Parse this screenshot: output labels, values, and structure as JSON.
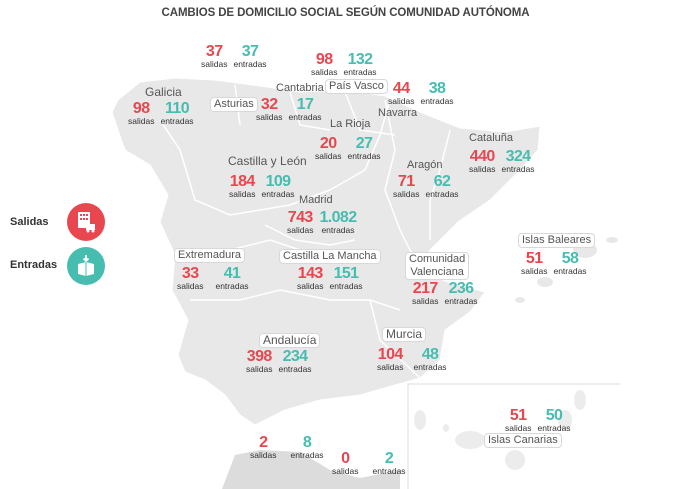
{
  "title": "CAMBIOS DE DOMICILIO SOCIAL SEGÚN COMUNIDAD AUTÓNOMA",
  "legend": {
    "salidas": {
      "label": "Salidas",
      "icon": "building-truck-icon",
      "color": "#e8474f"
    },
    "entradas": {
      "label": "Entradas",
      "icon": "box-arrow-icon",
      "color": "#47bdb0"
    }
  },
  "sub_salidas": "salidas",
  "sub_entradas": "entradas",
  "regions": {
    "asturias": {
      "name": "Asturias",
      "salidas": "37",
      "entradas": "37"
    },
    "pais_vasco": {
      "name": "País Vasco",
      "salidas": "98",
      "entradas": "132"
    },
    "cantabria": {
      "name": "Cantabria",
      "salidas": "32",
      "entradas": "17"
    },
    "navarra": {
      "name": "Navarra",
      "salidas": "44",
      "entradas": "38"
    },
    "galicia": {
      "name": "Galicia",
      "salidas": "98",
      "entradas": "110"
    },
    "la_rioja": {
      "name": "La Rioja",
      "salidas": "20",
      "entradas": "27"
    },
    "cataluna": {
      "name": "Cataluña",
      "salidas": "440",
      "entradas": "324"
    },
    "castilla_leon": {
      "name": "Castilla y León",
      "salidas": "184",
      "entradas": "109"
    },
    "aragon": {
      "name": "Aragón",
      "salidas": "71",
      "entradas": "62"
    },
    "madrid": {
      "name": "Madrid",
      "salidas": "743",
      "entradas": "1.082"
    },
    "baleares": {
      "name": "Islas Baleares",
      "salidas": "51",
      "entradas": "58"
    },
    "extremadura": {
      "name": "Extremadura",
      "salidas": "33",
      "entradas": "41"
    },
    "castilla_mancha": {
      "name": "Castilla La Mancha",
      "salidas": "143",
      "entradas": "151"
    },
    "valenciana": {
      "name_line1": "Comunidad",
      "name_line2": "Valenciana",
      "salidas": "217",
      "entradas": "236"
    },
    "andalucia": {
      "name": "Andalucía",
      "salidas": "398",
      "entradas": "234"
    },
    "murcia": {
      "name": "Murcia",
      "salidas": "104",
      "entradas": "48"
    },
    "canarias": {
      "name": "Islas Canarias",
      "salidas": "51",
      "entradas": "50"
    },
    "ceuta": {
      "salidas": "2",
      "entradas": "8"
    },
    "melilla": {
      "salidas": "0",
      "entradas": "2"
    }
  }
}
